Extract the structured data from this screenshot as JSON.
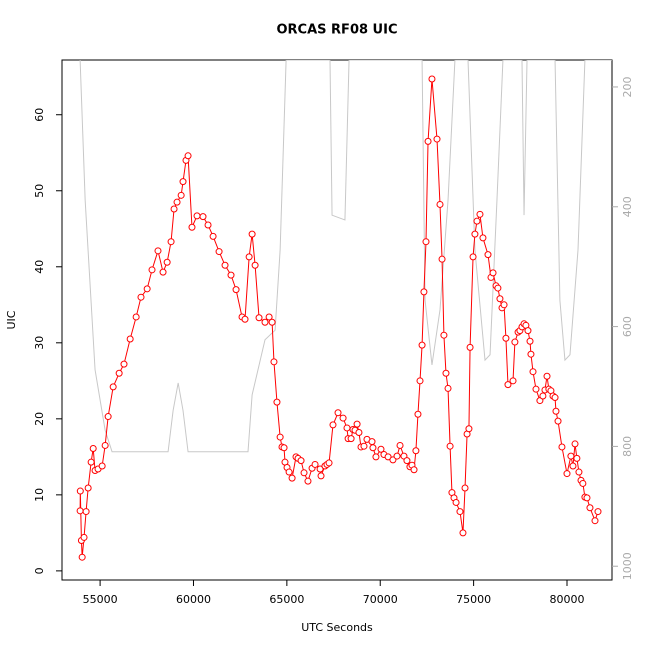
{
  "chart_data": {
    "type": "line",
    "title": "ORCAS RF08 UIC",
    "xlabel": "UTC Seconds",
    "ylabel": "UIC",
    "xlim": [
      52960,
      82410
    ],
    "ylim": [
      -1.2,
      67.2
    ],
    "y2lim": [
      1023,
      155
    ],
    "xticks": [
      55000,
      60000,
      65000,
      70000,
      75000,
      80000
    ],
    "yticks": [
      0,
      10,
      20,
      30,
      40,
      50,
      60
    ],
    "y2ticks": [
      200,
      400,
      600,
      800,
      1000
    ],
    "series": [
      {
        "color": "#ff0000",
        "markers": true,
        "x": [
          53930,
          53940,
          54000,
          54040,
          54140,
          54250,
          54360,
          54520,
          54630,
          54730,
          54890,
          55110,
          55270,
          55430,
          55700,
          56020,
          56280,
          56610,
          56930,
          57190,
          57520,
          57780,
          58100,
          58370,
          58590,
          58800,
          58960,
          59120,
          59340,
          59440,
          59600,
          59710,
          59920,
          60190,
          60510,
          60780,
          61050,
          61370,
          61690,
          62010,
          62280,
          62600,
          62760,
          62980,
          63140,
          63300,
          63510,
          63830,
          64050,
          64210,
          64310,
          64470,
          64640,
          64740,
          64850,
          64900,
          65010,
          65120,
          65280,
          65490,
          65600,
          65760,
          65920,
          66130,
          66350,
          66510,
          66780,
          66830,
          67040,
          67150,
          67260,
          67470,
          67740,
          68010,
          68220,
          68280,
          68440,
          68540,
          68650,
          68760,
          68860,
          68970,
          69130,
          69290,
          69560,
          69610,
          69770,
          70040,
          70200,
          70420,
          70680,
          70900,
          71060,
          71270,
          71430,
          71590,
          71700,
          71810,
          71910,
          72020,
          72130,
          72240,
          72340,
          72450,
          72560,
          72770,
          73040,
          73200,
          73310,
          73410,
          73520,
          73630,
          73740,
          73840,
          73950,
          74060,
          74270,
          74430,
          74540,
          74650,
          74750,
          74810,
          74970,
          75070,
          75180,
          75340,
          75500,
          75770,
          75930,
          76040,
          76200,
          76300,
          76410,
          76520,
          76630,
          76730,
          76840,
          77110,
          77210,
          77380,
          77480,
          77590,
          77700,
          77800,
          77910,
          78020,
          78070,
          78180,
          78340,
          78550,
          78710,
          78820,
          78930,
          79030,
          79140,
          79250,
          79360,
          79410,
          79520,
          79730,
          80000,
          80210,
          80320,
          80430,
          80530,
          80640,
          80750,
          80850,
          80960,
          81070,
          81230,
          81500,
          81660
        ],
        "values": [
          7.9,
          10.5,
          4.0,
          1.8,
          4.4,
          7.8,
          10.9,
          14.3,
          16.1,
          13.2,
          13.4,
          13.8,
          16.5,
          20.3,
          24.2,
          26.0,
          27.2,
          30.5,
          33.4,
          36.0,
          37.1,
          39.6,
          42.1,
          39.3,
          40.6,
          43.3,
          47.6,
          48.5,
          49.4,
          51.2,
          54.0,
          54.6,
          45.2,
          46.7,
          46.6,
          45.5,
          44.0,
          42.0,
          40.2,
          38.9,
          37.0,
          33.4,
          33.1,
          41.3,
          44.3,
          40.2,
          33.3,
          32.7,
          33.4,
          32.7,
          27.5,
          22.2,
          17.6,
          16.3,
          16.2,
          14.3,
          13.6,
          13.0,
          12.2,
          15.0,
          14.8,
          14.5,
          12.9,
          11.8,
          13.5,
          14.0,
          13.4,
          12.5,
          13.8,
          14.0,
          14.2,
          19.2,
          20.8,
          20.1,
          18.8,
          17.4,
          17.4,
          18.6,
          18.5,
          19.3,
          18.2,
          16.3,
          16.4,
          17.3,
          17.0,
          16.2,
          15.0,
          16.0,
          15.3,
          15.0,
          14.6,
          15.1,
          16.5,
          15.1,
          14.5,
          13.7,
          13.9,
          13.3,
          15.8,
          20.6,
          25.0,
          29.7,
          36.7,
          43.3,
          56.5,
          64.7,
          56.8,
          48.2,
          41.0,
          31.0,
          26.0,
          24.0,
          16.4,
          10.3,
          9.6,
          9.0,
          7.8,
          5.0,
          10.9,
          18.0,
          18.7,
          29.4,
          41.3,
          44.3,
          46.0,
          46.9,
          43.8,
          41.6,
          38.6,
          39.2,
          37.5,
          37.2,
          35.8,
          34.6,
          35.0,
          30.6,
          24.5,
          25.0,
          30.1,
          31.4,
          31.6,
          32.1,
          32.5,
          32.3,
          31.6,
          30.2,
          28.5,
          26.2,
          23.9,
          22.4,
          23.0,
          23.8,
          25.6,
          23.9,
          23.7,
          23.0,
          22.8,
          21.0,
          19.7,
          16.3,
          12.8,
          15.1,
          13.8,
          16.7,
          14.8,
          13.0,
          11.9,
          11.5,
          9.7,
          9.6,
          8.3,
          6.6,
          7.8
        ]
      },
      {
        "color": "#c8c8c8",
        "axis": "y2",
        "markers": false,
        "x": [
          53930,
          54200,
          54730,
          55270,
          55640,
          58640,
          58910,
          59180,
          59440,
          59710,
          62920,
          63140,
          63830,
          64370,
          64640,
          64960,
          67310,
          67420,
          68110,
          68330,
          72240,
          72400,
          72770,
          73200,
          73630,
          74000,
          74700,
          75070,
          75610,
          75880,
          76250,
          76570,
          77590,
          77700,
          77860,
          79360,
          79620,
          79890,
          80160,
          80590,
          80960,
          82410
        ],
        "values": [
          155,
          389,
          672,
          773,
          809,
          809,
          740,
          694,
          740,
          809,
          809,
          714,
          622,
          606,
          472,
          155,
          155,
          414,
          422,
          155,
          155,
          556,
          664,
          572,
          389,
          155,
          155,
          472,
          656,
          647,
          389,
          155,
          155,
          414,
          155,
          155,
          556,
          656,
          647,
          472,
          155,
          155
        ]
      }
    ]
  }
}
